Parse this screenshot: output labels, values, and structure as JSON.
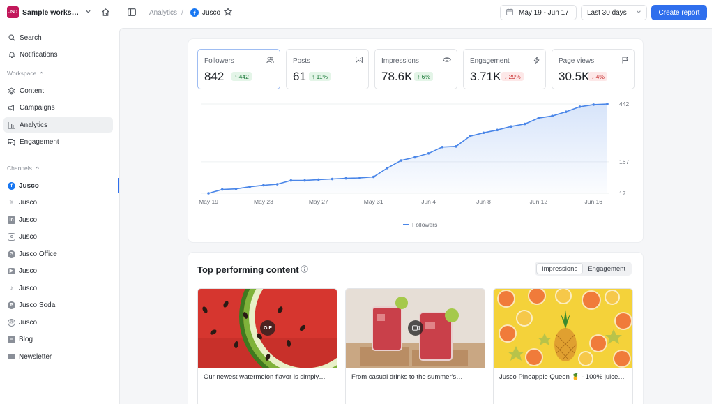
{
  "workspace": {
    "logo_text": "JSD",
    "name": "Sample workspace"
  },
  "breadcrumb": {
    "section": "Analytics",
    "separator": "/",
    "page": "Jusco"
  },
  "header": {
    "date_range": "May 19 -  Jun 17",
    "period": "Last 30 days",
    "create_label": "Create report"
  },
  "sidebar": {
    "top": [
      {
        "label": "Search",
        "icon": "search-icon"
      },
      {
        "label": "Notifications",
        "icon": "bell-icon"
      }
    ],
    "workspace_label": "Workspace",
    "workspace_items": [
      {
        "label": "Content",
        "icon": "layers-icon"
      },
      {
        "label": "Campaigns",
        "icon": "megaphone-icon"
      },
      {
        "label": "Analytics",
        "icon": "bar-chart-icon"
      },
      {
        "label": "Engagement",
        "icon": "chat-icon"
      }
    ],
    "channels_label": "Channels",
    "channels": [
      {
        "label": "Jusco",
        "icon": "facebook-icon"
      },
      {
        "label": "Jusco",
        "icon": "x-icon"
      },
      {
        "label": "Jusco",
        "icon": "linkedin-icon"
      },
      {
        "label": "Jusco",
        "icon": "instagram-icon"
      },
      {
        "label": "Jusco Office",
        "icon": "google-business-icon"
      },
      {
        "label": "Jusco",
        "icon": "youtube-icon"
      },
      {
        "label": "Jusco",
        "icon": "tiktok-icon"
      },
      {
        "label": "Jusco Soda",
        "icon": "pinterest-icon"
      },
      {
        "label": "Jusco",
        "icon": "threads-icon"
      },
      {
        "label": "Blog",
        "icon": "blog-icon"
      },
      {
        "label": "Newsletter",
        "icon": "mail-icon"
      }
    ]
  },
  "stats": [
    {
      "label": "Followers",
      "value": "842",
      "delta": "442",
      "direction": "up",
      "icon": "users-icon"
    },
    {
      "label": "Posts",
      "value": "61",
      "delta": "11%",
      "direction": "up",
      "icon": "image-icon"
    },
    {
      "label": "Impressions",
      "value": "78.6K",
      "delta": "6%",
      "direction": "up",
      "icon": "eye-icon"
    },
    {
      "label": "Engagement",
      "value": "3.71K",
      "delta": "29%",
      "direction": "down",
      "icon": "bolt-icon"
    },
    {
      "label": "Page views",
      "value": "30.5K",
      "delta": "4%",
      "direction": "down",
      "icon": "flag-icon"
    }
  ],
  "chart_data": {
    "type": "area",
    "x": [
      "May 19",
      "May 20",
      "May 21",
      "May 22",
      "May 23",
      "May 24",
      "May 25",
      "May 26",
      "May 27",
      "May 28",
      "May 29",
      "May 30",
      "May 31",
      "Jun 1",
      "Jun 2",
      "Jun 3",
      "Jun 4",
      "Jun 5",
      "Jun 6",
      "Jun 7",
      "Jun 8",
      "Jun 9",
      "Jun 10",
      "Jun 11",
      "Jun 12",
      "Jun 13",
      "Jun 14",
      "Jun 15",
      "Jun 16",
      "Jun 17"
    ],
    "series": [
      {
        "name": "Followers",
        "values": [
          17,
          35,
          38,
          48,
          55,
          60,
          78,
          78,
          82,
          85,
          88,
          90,
          95,
          137,
          173,
          188,
          207,
          237,
          240,
          288,
          305,
          318,
          335,
          347,
          375,
          385,
          405,
          429,
          439,
          442
        ]
      }
    ],
    "x_tick_labels": [
      "May 19",
      "May 23",
      "May 27",
      "May 31",
      "Jun 4",
      "Jun 8",
      "Jun 12",
      "Jun 16"
    ],
    "y_tick_labels": [
      "17",
      "167",
      "442"
    ],
    "ylim": [
      17,
      442
    ],
    "legend": "bottom-center",
    "grid": true,
    "color": "#4a86e8"
  },
  "top_content": {
    "title": "Top performing content",
    "tabs": [
      "Impressions",
      "Engagement"
    ],
    "active_tab": "Impressions",
    "posts": [
      {
        "caption": "Our newest watermelon flavor is simply…",
        "media": "GIF"
      },
      {
        "caption": "From casual drinks to the summer's…",
        "media": "video-icon"
      },
      {
        "caption": "Jusco Pineapple Queen 🍍 - 100% juice…",
        "media": ""
      }
    ]
  },
  "colors": {
    "accent": "#2f6fed",
    "up": "#1d7a3a",
    "down": "#c62828"
  }
}
